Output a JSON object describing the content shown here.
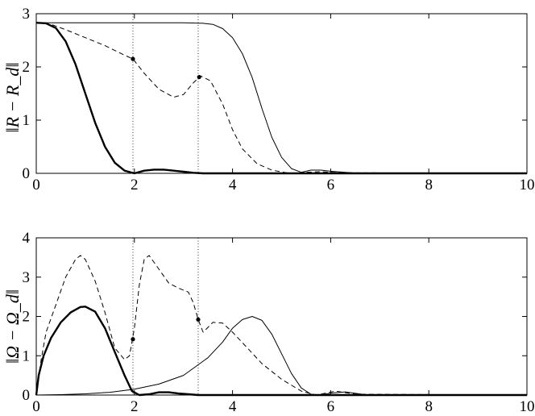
{
  "chart_data": [
    {
      "type": "line",
      "ylabel": "‖R − R_d‖",
      "xlim": [
        0,
        10
      ],
      "ylim": [
        0,
        3
      ],
      "xticks": [
        "0",
        "2",
        "4",
        "6",
        "8",
        "10"
      ],
      "yticks": [
        "0",
        "1",
        "2",
        "3"
      ],
      "grid": false,
      "vlines": [
        1.97,
        3.3
      ],
      "markers": [
        {
          "x": 1.97,
          "y": 2.15
        },
        {
          "x": 3.32,
          "y": 1.81
        }
      ],
      "series": [
        {
          "style": "thick-solid",
          "x": [
            0,
            0.2,
            0.4,
            0.6,
            0.8,
            1.0,
            1.2,
            1.4,
            1.6,
            1.8,
            2.0,
            2.2,
            2.4,
            2.6,
            2.8,
            3.0,
            3.2,
            3.4,
            4.0,
            10
          ],
          "y": [
            2.83,
            2.82,
            2.73,
            2.48,
            2.05,
            1.5,
            0.95,
            0.5,
            0.2,
            0.05,
            0.0,
            0.05,
            0.07,
            0.07,
            0.05,
            0.03,
            0.01,
            0.0,
            0.0,
            0.0
          ]
        },
        {
          "style": "dashed",
          "x": [
            0,
            0.3,
            0.6,
            1.0,
            1.4,
            1.8,
            1.97,
            2.2,
            2.5,
            2.8,
            3.0,
            3.2,
            3.35,
            3.55,
            3.8,
            4.0,
            4.2,
            4.5,
            4.8,
            5.1,
            5.3,
            5.5,
            5.8,
            6.2,
            10
          ],
          "y": [
            2.83,
            2.8,
            2.7,
            2.55,
            2.4,
            2.22,
            2.15,
            1.88,
            1.58,
            1.43,
            1.48,
            1.7,
            1.83,
            1.74,
            1.3,
            0.82,
            0.46,
            0.18,
            0.06,
            0.01,
            0.0,
            0.02,
            0.03,
            0.01,
            0.0
          ]
        },
        {
          "style": "thin-solid",
          "x": [
            0,
            1.0,
            2.0,
            3.0,
            3.4,
            3.6,
            3.8,
            4.0,
            4.2,
            4.4,
            4.6,
            4.8,
            5.0,
            5.2,
            5.4,
            5.6,
            5.8,
            6.0,
            6.3,
            6.6,
            10
          ],
          "y": [
            2.83,
            2.83,
            2.83,
            2.83,
            2.82,
            2.8,
            2.72,
            2.55,
            2.25,
            1.8,
            1.22,
            0.68,
            0.3,
            0.09,
            0.02,
            0.06,
            0.06,
            0.04,
            0.02,
            0.0,
            0.0
          ]
        }
      ]
    },
    {
      "type": "line",
      "ylabel": "‖Ω − Ω_d‖",
      "xlim": [
        0,
        10
      ],
      "ylim": [
        0,
        4
      ],
      "xticks": [
        "0",
        "2",
        "4",
        "6",
        "8",
        "10"
      ],
      "yticks": [
        "0",
        "1",
        "2",
        "3",
        "4"
      ],
      "grid": false,
      "vlines": [
        1.97,
        3.3
      ],
      "markers": [
        {
          "x": 1.97,
          "y": 1.42
        },
        {
          "x": 3.3,
          "y": 1.92
        }
      ],
      "series": [
        {
          "style": "thick-solid",
          "x": [
            0,
            0.05,
            0.15,
            0.3,
            0.5,
            0.7,
            0.9,
            1.0,
            1.2,
            1.4,
            1.6,
            1.8,
            1.95,
            2.1,
            2.3,
            2.5,
            2.7,
            2.9,
            3.1,
            3.3,
            3.6,
            10
          ],
          "y": [
            0.0,
            0.5,
            1.0,
            1.45,
            1.85,
            2.1,
            2.24,
            2.25,
            2.12,
            1.7,
            1.1,
            0.5,
            0.1,
            0.0,
            0.02,
            0.07,
            0.07,
            0.04,
            0.02,
            0.0,
            0.0,
            0.0
          ]
        },
        {
          "style": "dashed",
          "x": [
            0,
            0.1,
            0.2,
            0.4,
            0.6,
            0.8,
            0.9,
            1.0,
            1.2,
            1.4,
            1.6,
            1.8,
            1.9,
            2.0,
            2.1,
            2.2,
            2.3,
            2.5,
            2.7,
            2.9,
            3.1,
            3.2,
            3.3,
            3.4,
            3.5,
            3.6,
            3.8,
            4.0,
            4.3,
            4.6,
            5.0,
            5.4,
            5.7,
            5.9,
            6.1,
            6.5,
            10
          ],
          "y": [
            0.0,
            0.9,
            1.6,
            2.3,
            3.0,
            3.45,
            3.55,
            3.45,
            2.9,
            2.1,
            1.2,
            0.9,
            1.0,
            1.7,
            2.8,
            3.45,
            3.55,
            3.2,
            2.85,
            2.72,
            2.62,
            2.35,
            1.92,
            1.6,
            1.72,
            1.85,
            1.83,
            1.6,
            1.2,
            0.8,
            0.4,
            0.1,
            0.0,
            0.05,
            0.1,
            0.02,
            0.0
          ]
        },
        {
          "style": "thin-solid",
          "x": [
            0,
            0.5,
            1.0,
            1.5,
            2.0,
            2.5,
            3.0,
            3.5,
            3.8,
            4.0,
            4.2,
            4.4,
            4.6,
            4.8,
            5.0,
            5.2,
            5.4,
            5.6,
            5.8,
            6.0,
            6.3,
            6.7,
            10
          ],
          "y": [
            0.0,
            0.01,
            0.03,
            0.07,
            0.15,
            0.28,
            0.5,
            0.95,
            1.35,
            1.7,
            1.92,
            2.0,
            1.9,
            1.55,
            1.05,
            0.55,
            0.18,
            0.02,
            0.0,
            0.05,
            0.08,
            0.01,
            0.0
          ]
        }
      ]
    }
  ]
}
